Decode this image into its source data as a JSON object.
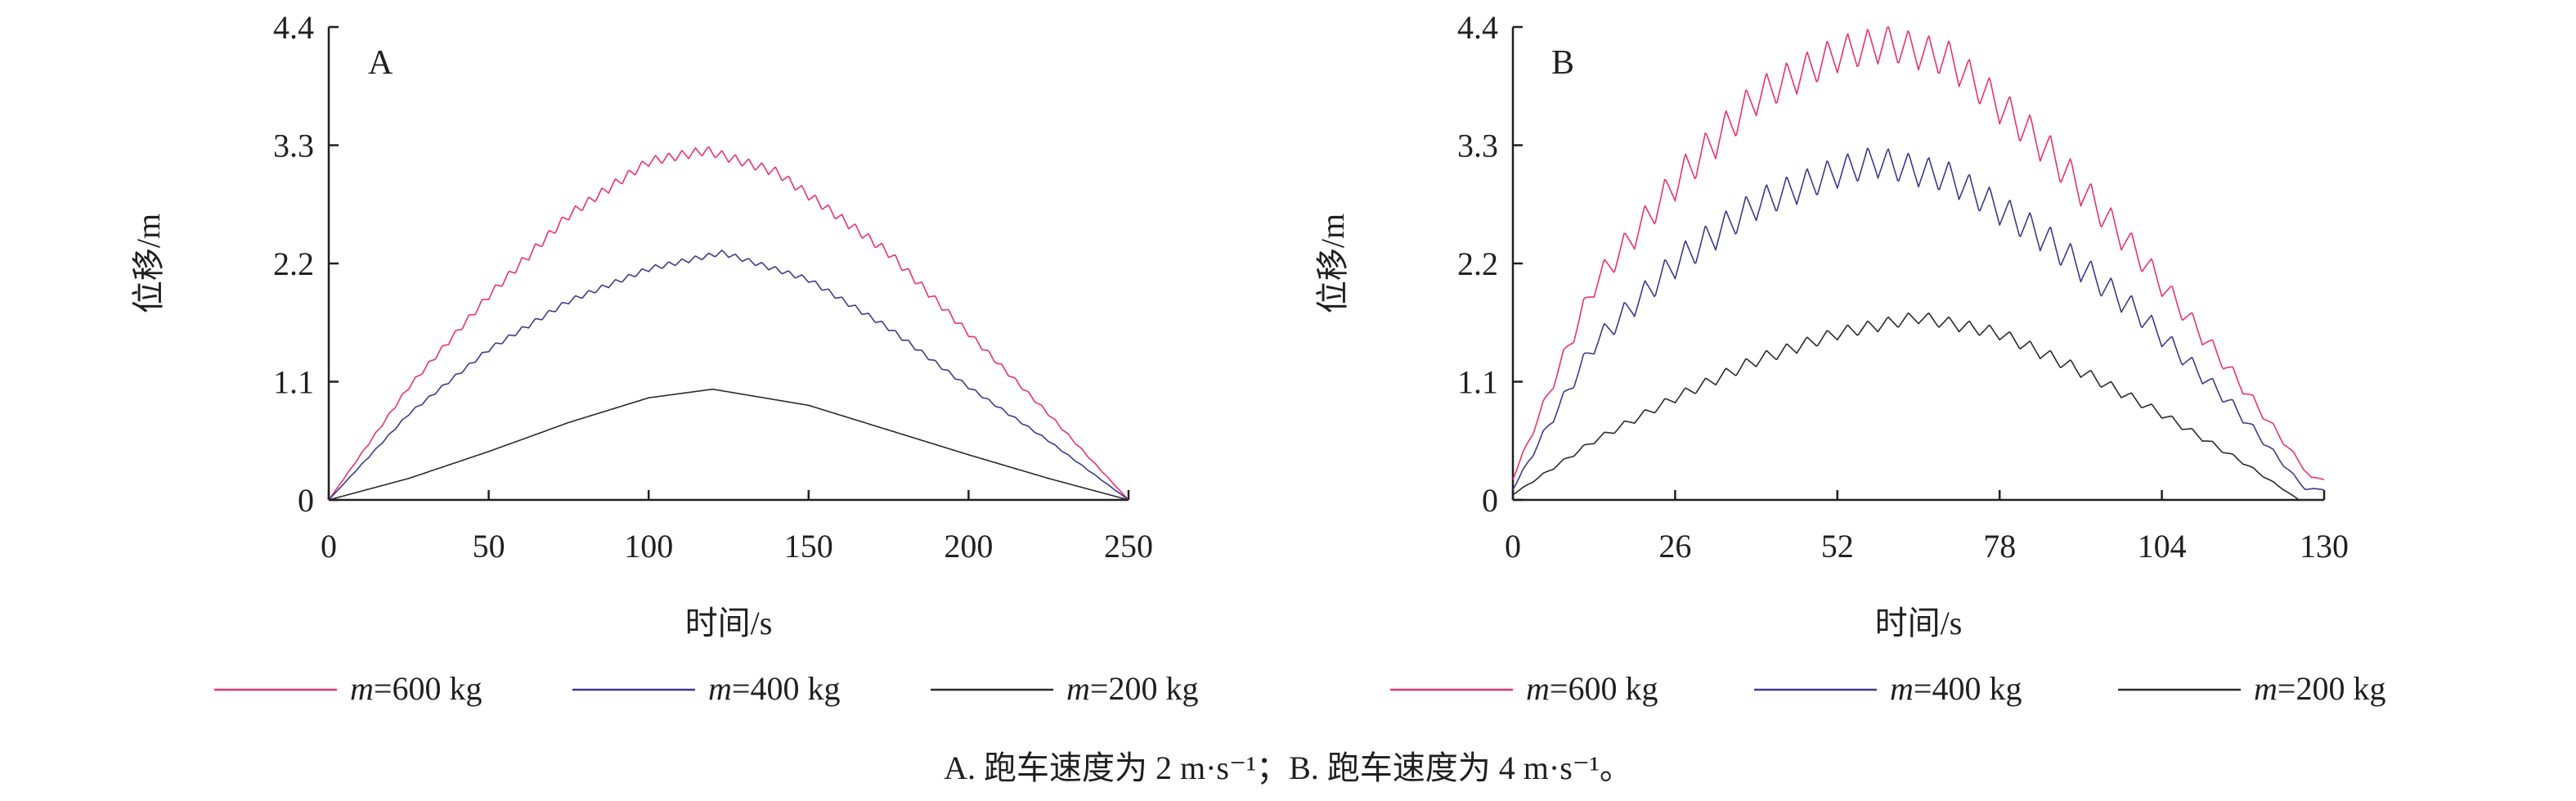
{
  "chart_data": [
    {
      "type": "line",
      "panel_label": "A",
      "xlabel": "时间/s",
      "ylabel": "位移/m",
      "xlim": [
        0,
        250
      ],
      "ylim": [
        0,
        4.4
      ],
      "xticks": [
        "0",
        "50",
        "100",
        "150",
        "200",
        "250"
      ],
      "yticks": [
        "0",
        "1.1",
        "2.2",
        "3.3",
        "4.4"
      ],
      "grid": false,
      "series": [
        {
          "name_italic": "m",
          "name_rest": "=600 kg",
          "color": "#e8336d",
          "peak_x": 118,
          "peak_y": 3.25,
          "oscillation": 0.09,
          "points": [
            [
              0,
              0
            ],
            [
              25,
              1.05
            ],
            [
              50,
              1.9
            ],
            [
              75,
              2.65
            ],
            [
              100,
              3.15
            ],
            [
              118,
              3.25
            ],
            [
              140,
              3.05
            ],
            [
              175,
              2.3
            ],
            [
              200,
              1.55
            ],
            [
              225,
              0.8
            ],
            [
              250,
              0
            ]
          ]
        },
        {
          "name_italic": "m",
          "name_rest": "=400 kg",
          "color": "#3b3b8c",
          "peak_x": 123,
          "peak_y": 2.3,
          "oscillation": 0.05,
          "points": [
            [
              0,
              0
            ],
            [
              25,
              0.8
            ],
            [
              50,
              1.4
            ],
            [
              75,
              1.85
            ],
            [
              100,
              2.15
            ],
            [
              123,
              2.3
            ],
            [
              150,
              2.05
            ],
            [
              175,
              1.6
            ],
            [
              200,
              1.05
            ],
            [
              225,
              0.55
            ],
            [
              250,
              0
            ]
          ]
        },
        {
          "name_italic": "m",
          "name_rest": "=200 kg",
          "color": "#2b2b2b",
          "peak_x": 120,
          "peak_y": 1.03,
          "oscillation": 0.0,
          "points": [
            [
              0,
              0
            ],
            [
              25,
              0.2
            ],
            [
              50,
              0.45
            ],
            [
              75,
              0.72
            ],
            [
              100,
              0.95
            ],
            [
              120,
              1.03
            ],
            [
              150,
              0.88
            ],
            [
              175,
              0.65
            ],
            [
              200,
              0.42
            ],
            [
              225,
              0.2
            ],
            [
              250,
              0
            ]
          ]
        }
      ]
    },
    {
      "type": "line",
      "panel_label": "B",
      "xlabel": "时间/s",
      "ylabel": "位移/m",
      "xlim": [
        0,
        130
      ],
      "ylim": [
        0,
        4.4
      ],
      "xticks": [
        "0",
        "26",
        "52",
        "78",
        "104",
        "130"
      ],
      "yticks": [
        "0",
        "1.1",
        "2.2",
        "3.3",
        "4.4"
      ],
      "grid": false,
      "series": [
        {
          "name_italic": "m",
          "name_rest": "=600 kg",
          "color": "#e8336d",
          "peak_x": 60,
          "peak_y": 4.3,
          "oscillation": 0.35,
          "points": [
            [
              0,
              0.2
            ],
            [
              13,
              2.0
            ],
            [
              26,
              2.95
            ],
            [
              39,
              3.75
            ],
            [
              52,
              4.15
            ],
            [
              60,
              4.25
            ],
            [
              70,
              4.1
            ],
            [
              85,
              3.3
            ],
            [
              100,
              2.3
            ],
            [
              115,
              1.2
            ],
            [
              128,
              0.2
            ]
          ]
        },
        {
          "name_italic": "m",
          "name_rest": "=400 kg",
          "color": "#3b3b8c",
          "peak_x": 58,
          "peak_y": 3.25,
          "oscillation": 0.3,
          "points": [
            [
              0,
              0.1
            ],
            [
              13,
              1.45
            ],
            [
              26,
              2.2
            ],
            [
              39,
              2.75
            ],
            [
              52,
              3.05
            ],
            [
              58,
              3.15
            ],
            [
              70,
              3.0
            ],
            [
              85,
              2.45
            ],
            [
              100,
              1.75
            ],
            [
              115,
              0.9
            ],
            [
              127,
              0.1
            ]
          ]
        },
        {
          "name_italic": "m",
          "name_rest": "=200 kg",
          "color": "#2b2b2b",
          "peak_x": 65,
          "peak_y": 1.72,
          "oscillation": 0.12,
          "points": [
            [
              0,
              0.05
            ],
            [
              13,
              0.55
            ],
            [
              26,
              0.95
            ],
            [
              39,
              1.3
            ],
            [
              52,
              1.55
            ],
            [
              65,
              1.7
            ],
            [
              78,
              1.55
            ],
            [
              91,
              1.2
            ],
            [
              104,
              0.8
            ],
            [
              117,
              0.35
            ],
            [
              126,
              0.0
            ]
          ]
        }
      ]
    }
  ],
  "caption": "A. 跑车速度为 2 m·s⁻¹；B. 跑车速度为 4 m·s⁻¹。"
}
